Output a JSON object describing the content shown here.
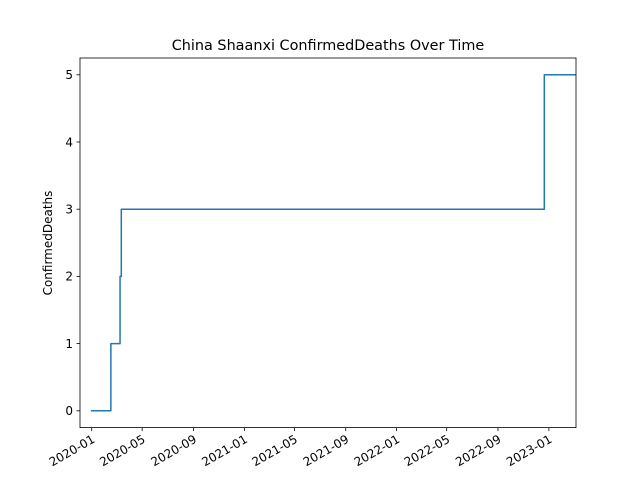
{
  "chart_data": {
    "type": "line",
    "title": "China Shaanxi ConfirmedDeaths Over Time",
    "xlabel": "",
    "ylabel": "ConfirmedDeaths",
    "xlim": [
      "2019-12-04",
      "2023-03-07"
    ],
    "ylim": [
      -0.25,
      5.25
    ],
    "grid": false,
    "legend": "none",
    "x_ticks": [
      "2020-01",
      "2020-05",
      "2020-09",
      "2021-01",
      "2021-05",
      "2021-09",
      "2022-01",
      "2022-05",
      "2022-09",
      "2023-01"
    ],
    "y_ticks": [
      0,
      1,
      2,
      3,
      4,
      5
    ],
    "series": [
      {
        "color": "#1f77b4",
        "step": true,
        "points": [
          {
            "x": "2020-01-01",
            "y": 0
          },
          {
            "x": "2020-02-16",
            "y": 1
          },
          {
            "x": "2020-03-09",
            "y": 2
          },
          {
            "x": "2020-03-12",
            "y": 3
          },
          {
            "x": "2022-12-21",
            "y": 5
          },
          {
            "x": "2023-03-05",
            "y": 5
          }
        ]
      }
    ]
  }
}
